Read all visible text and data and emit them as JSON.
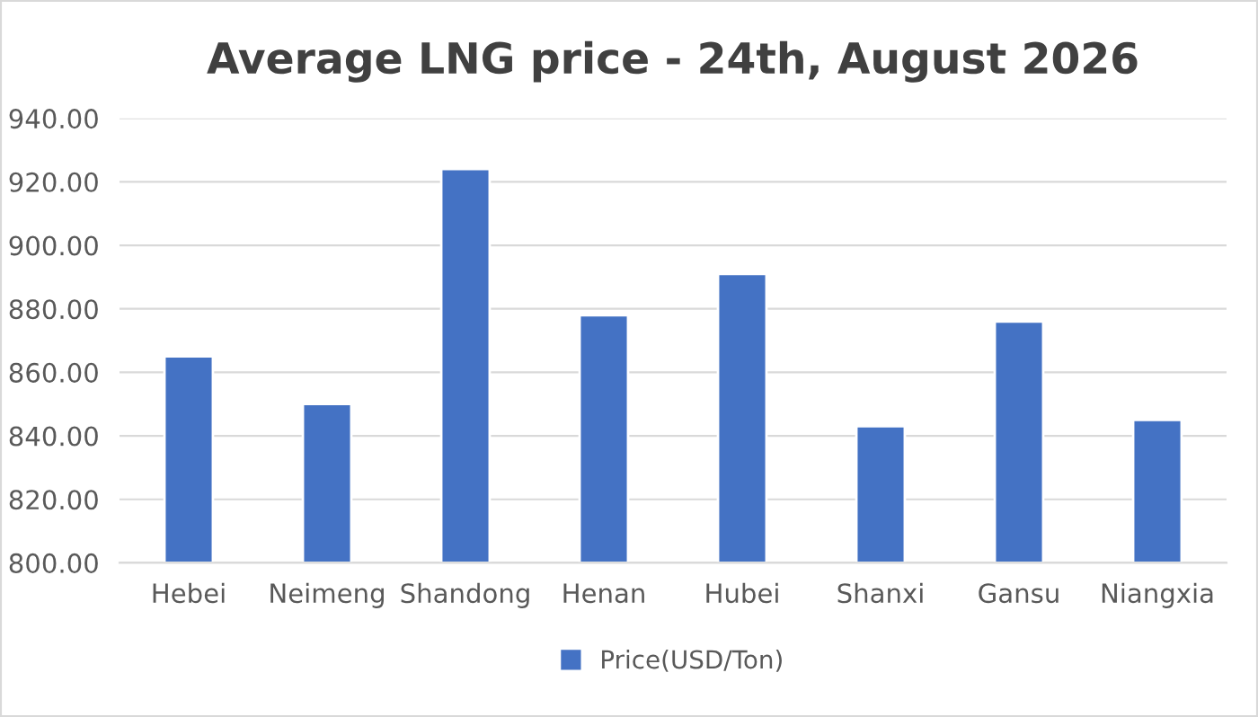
{
  "chart_data": {
    "type": "bar",
    "title": "Average LNG price - 24th, August 2026",
    "categories": [
      "Hebei",
      "Neimeng",
      "Shandong",
      "Henan",
      "Hubei",
      "Shanxi",
      "Gansu",
      "Niangxia"
    ],
    "series": [
      {
        "name": "Price(USD/Ton)",
        "color": "#4472c4",
        "values": [
          865,
          850,
          924,
          878,
          891,
          843,
          876,
          845
        ]
      }
    ],
    "ylim": [
      800,
      940
    ],
    "yticks": [
      {
        "value": 800,
        "label": "800.00"
      },
      {
        "value": 820,
        "label": "820.00"
      },
      {
        "value": 840,
        "label": "840.00"
      },
      {
        "value": 860,
        "label": "860.00"
      },
      {
        "value": 880,
        "label": "880.00"
      },
      {
        "value": 900,
        "label": "900.00"
      },
      {
        "value": 920,
        "label": "920.00"
      },
      {
        "value": 940,
        "label": "940.00"
      }
    ],
    "grid": "y",
    "legend": "bottom"
  }
}
